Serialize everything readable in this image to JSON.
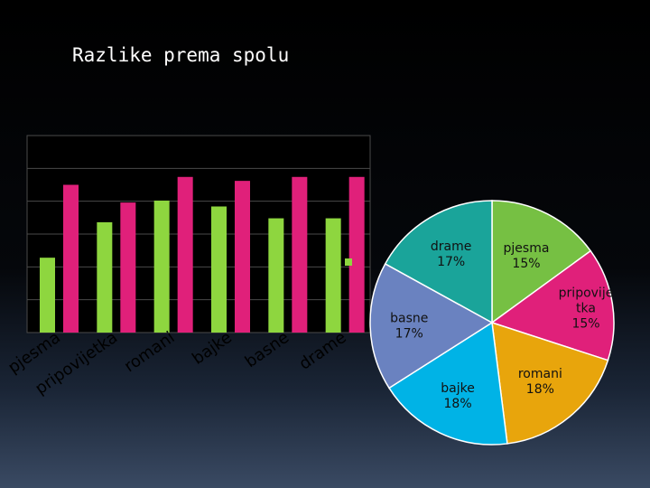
{
  "title": "Razlike prema spolu",
  "colors": {
    "bar_series_1": "#8ed63f",
    "bar_series_2": "#e0207a",
    "pie": [
      "#76c043",
      "#e0207a",
      "#e8a50c",
      "#00b3e6",
      "#6a82c0",
      "#1aa49a"
    ]
  },
  "chart_data": [
    {
      "type": "bar",
      "categories": [
        "pjesma",
        "pripovijetka",
        "romani",
        "bajke",
        "basne",
        "drame"
      ],
      "series": [
        {
          "values": [
            0.38,
            0.56,
            0.67,
            0.64,
            0.58,
            0.58
          ]
        },
        {
          "values": [
            0.75,
            0.66,
            0.79,
            0.77,
            0.79,
            0.79
          ]
        }
      ],
      "ylim": [
        0,
        1
      ],
      "grid": true
    },
    {
      "type": "pie",
      "slices": [
        {
          "label": "pjesma",
          "value": 15,
          "text": "pjesma\n15%"
        },
        {
          "label": "pripovijetka",
          "value": 15,
          "text": "pripovije\ntka\n15%"
        },
        {
          "label": "romani",
          "value": 18,
          "text": "romani\n18%"
        },
        {
          "label": "bajke",
          "value": 18,
          "text": "bajke\n18%"
        },
        {
          "label": "basne",
          "value": 17,
          "text": "basne\n17%"
        },
        {
          "label": "drame",
          "value": 17,
          "text": "drame\n17%"
        }
      ]
    }
  ]
}
